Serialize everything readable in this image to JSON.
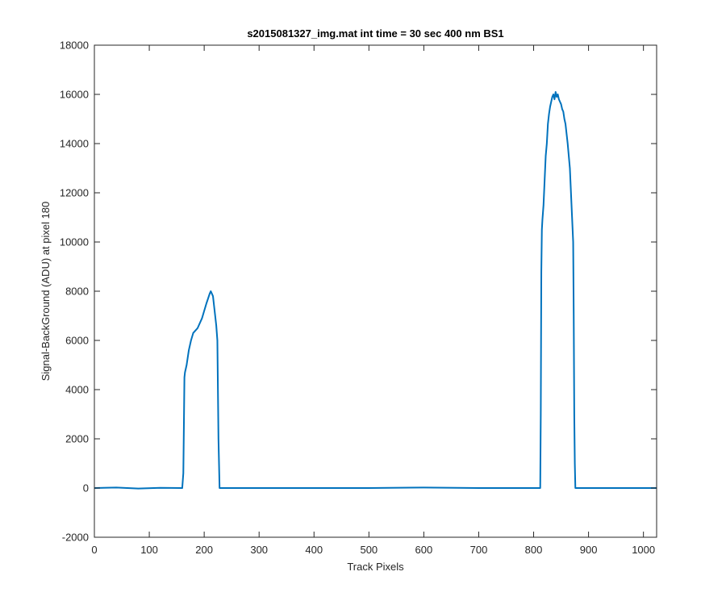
{
  "chart_data": {
    "type": "line",
    "title": "s2015081327_img.mat int time = 30 sec  400 nm BS1",
    "xlabel": "Track Pixels",
    "ylabel": "Signal-BackGround (ADU) at pixel 180",
    "xlim": [
      0,
      1024
    ],
    "ylim": [
      -2000,
      18000
    ],
    "xticks": [
      0,
      100,
      200,
      300,
      400,
      500,
      600,
      700,
      800,
      900,
      1000
    ],
    "yticks": [
      -2000,
      0,
      2000,
      4000,
      6000,
      8000,
      10000,
      12000,
      14000,
      16000,
      18000
    ],
    "grid": false,
    "box": true,
    "series": [
      {
        "color": "#0072BD",
        "x": [
          0,
          40,
          80,
          120,
          160,
          162,
          163,
          164,
          165,
          168,
          172,
          176,
          180,
          184,
          188,
          192,
          196,
          200,
          204,
          207,
          210,
          212,
          214,
          216,
          218,
          220,
          222,
          224,
          226,
          228,
          240,
          300,
          400,
          500,
          600,
          700,
          780,
          812,
          813,
          814,
          815,
          816,
          818,
          820,
          822,
          824,
          826,
          828,
          830,
          832,
          834,
          836,
          838,
          840,
          842,
          844,
          846,
          848,
          850,
          852,
          854,
          856,
          858,
          860,
          862,
          864,
          866,
          868,
          870,
          872,
          873,
          874,
          875,
          876,
          878,
          880,
          900,
          950,
          1000,
          1024
        ],
        "y": [
          0,
          20,
          -20,
          10,
          0,
          600,
          2500,
          4500,
          4700,
          5000,
          5600,
          6000,
          6300,
          6400,
          6500,
          6700,
          6900,
          7200,
          7500,
          7700,
          7900,
          8000,
          7900,
          7800,
          7400,
          7000,
          6600,
          6000,
          2000,
          0,
          0,
          0,
          0,
          0,
          20,
          0,
          0,
          0,
          3000,
          8800,
          10500,
          10900,
          11500,
          12500,
          13500,
          14000,
          14800,
          15200,
          15500,
          15700,
          15900,
          16000,
          15800,
          16100,
          15900,
          16000,
          15800,
          15700,
          15600,
          15400,
          15300,
          15000,
          14800,
          14400,
          14000,
          13500,
          13000,
          12000,
          11000,
          10000,
          7000,
          3000,
          1000,
          0,
          0,
          0,
          0,
          0,
          0,
          0
        ]
      }
    ]
  }
}
